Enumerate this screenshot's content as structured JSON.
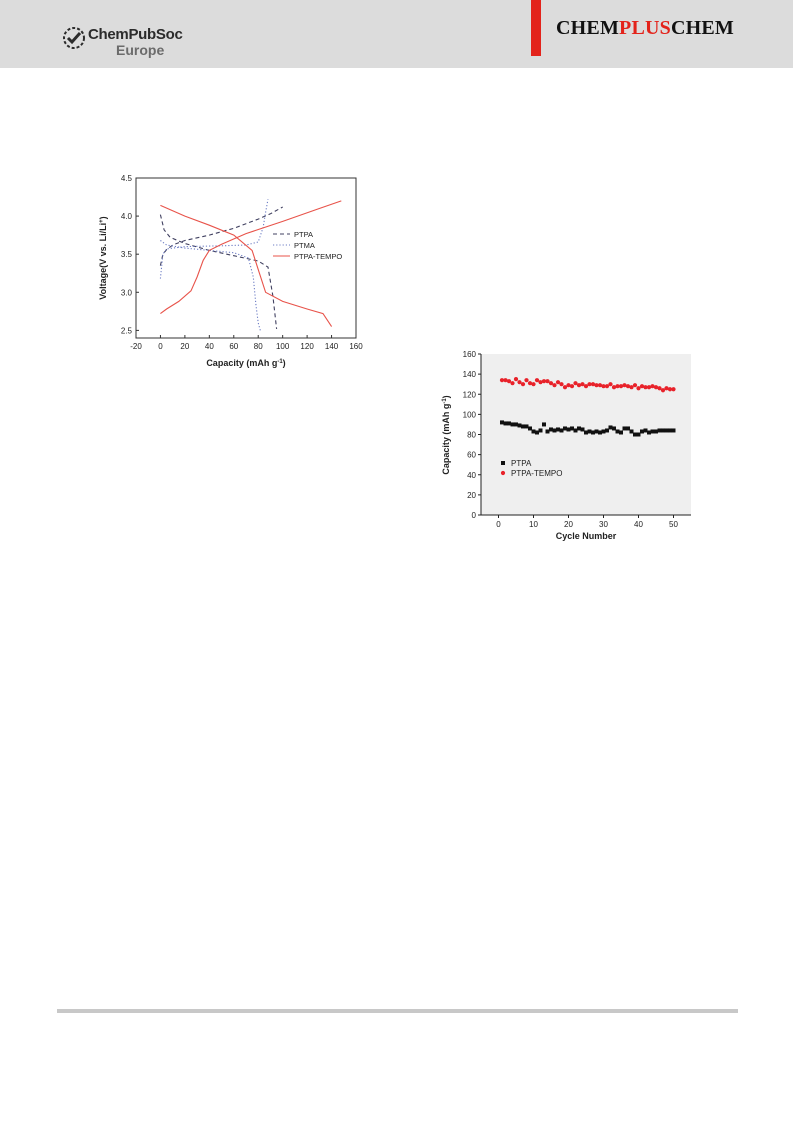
{
  "header": {
    "publisher_name": "ChemPubSoc",
    "publisher_sub": "Europe",
    "journal_left": "CHEM",
    "journal_mid": "PLUS",
    "journal_right": "CHEM",
    "accent_color": "#e3231b"
  },
  "chart_data": [
    {
      "type": "line",
      "xlabel": "Capacity (mAh g",
      "xlabel_sup": "-1",
      "xlabel_end": ")",
      "ylabel": "Voltage(V vs. Li/Li",
      "ylabel_sup": "+",
      "ylabel_end": ")",
      "xlim": [
        -20,
        160
      ],
      "ylim": [
        2.4,
        4.5
      ],
      "xticks": [
        -20,
        0,
        20,
        40,
        60,
        80,
        100,
        120,
        140,
        160
      ],
      "yticks": [
        2.5,
        3.0,
        3.5,
        4.0,
        4.5
      ],
      "legend_position": "middle-right",
      "series": [
        {
          "name": "PTPA",
          "color": "#404060",
          "style": "dashed",
          "charge": [
            [
              0,
              3.35
            ],
            [
              2,
              3.5
            ],
            [
              5,
              3.56
            ],
            [
              10,
              3.62
            ],
            [
              20,
              3.68
            ],
            [
              40,
              3.75
            ],
            [
              60,
              3.84
            ],
            [
              80,
              3.96
            ],
            [
              90,
              4.03
            ],
            [
              100,
              4.12
            ]
          ],
          "discharge": [
            [
              0,
              4.02
            ],
            [
              3,
              3.82
            ],
            [
              8,
              3.72
            ],
            [
              20,
              3.64
            ],
            [
              40,
              3.55
            ],
            [
              60,
              3.48
            ],
            [
              80,
              3.41
            ],
            [
              88,
              3.33
            ],
            [
              92,
              2.95
            ],
            [
              95,
              2.52
            ]
          ]
        },
        {
          "name": "PTMA",
          "color": "#6c7cc4",
          "style": "dotted",
          "charge": [
            [
              0,
              3.18
            ],
            [
              2,
              3.5
            ],
            [
              5,
              3.57
            ],
            [
              20,
              3.6
            ],
            [
              50,
              3.61
            ],
            [
              70,
              3.62
            ],
            [
              80,
              3.66
            ],
            [
              84,
              3.85
            ],
            [
              86,
              4.05
            ],
            [
              88,
              4.22
            ]
          ],
          "discharge": [
            [
              0,
              3.68
            ],
            [
              5,
              3.62
            ],
            [
              20,
              3.58
            ],
            [
              40,
              3.55
            ],
            [
              60,
              3.52
            ],
            [
              72,
              3.45
            ],
            [
              76,
              3.2
            ],
            [
              78,
              2.85
            ],
            [
              80,
              2.6
            ],
            [
              82,
              2.48
            ]
          ]
        },
        {
          "name": "PTPA-TEMPO",
          "color": "#e8534a",
          "style": "solid",
          "charge": [
            [
              0,
              2.72
            ],
            [
              5,
              2.78
            ],
            [
              15,
              2.88
            ],
            [
              25,
              3.02
            ],
            [
              30,
              3.2
            ],
            [
              35,
              3.42
            ],
            [
              40,
              3.55
            ],
            [
              50,
              3.63
            ],
            [
              70,
              3.77
            ],
            [
              100,
              3.93
            ],
            [
              130,
              4.1
            ],
            [
              148,
              4.2
            ]
          ],
          "discharge": [
            [
              0,
              4.14
            ],
            [
              20,
              4.0
            ],
            [
              40,
              3.88
            ],
            [
              60,
              3.75
            ],
            [
              75,
              3.55
            ],
            [
              80,
              3.3
            ],
            [
              86,
              3.0
            ],
            [
              100,
              2.88
            ],
            [
              120,
              2.78
            ],
            [
              133,
              2.72
            ],
            [
              140,
              2.55
            ]
          ]
        }
      ]
    },
    {
      "type": "scatter",
      "xlabel": "Cycle Number",
      "ylabel": "Capacity (mAh g",
      "ylabel_sup": "-1",
      "ylabel_end": ")",
      "xlim": [
        -5,
        55
      ],
      "ylim": [
        0,
        160
      ],
      "xticks": [
        0,
        10,
        20,
        30,
        40,
        50
      ],
      "yticks": [
        0,
        20,
        40,
        60,
        80,
        100,
        120,
        140,
        160
      ],
      "legend_position": "middle-left",
      "series": [
        {
          "name": "PTPA",
          "color": "#111111",
          "marker": "square",
          "x": [
            1,
            2,
            3,
            4,
            5,
            6,
            7,
            8,
            9,
            10,
            11,
            12,
            13,
            14,
            15,
            16,
            17,
            18,
            19,
            20,
            21,
            22,
            23,
            24,
            25,
            26,
            27,
            28,
            29,
            30,
            31,
            32,
            33,
            34,
            35,
            36,
            37,
            38,
            39,
            40,
            41,
            42,
            43,
            44,
            45,
            46,
            47,
            48,
            49,
            50
          ],
          "y": [
            92,
            91,
            91,
            90,
            90,
            89,
            88,
            88,
            86,
            83,
            82,
            84,
            90,
            83,
            85,
            84,
            85,
            84,
            86,
            85,
            86,
            84,
            86,
            85,
            82,
            83,
            82,
            83,
            82,
            83,
            84,
            87,
            86,
            83,
            82,
            86,
            86,
            83,
            80,
            80,
            83,
            84,
            82,
            83,
            83,
            84,
            84,
            84,
            84,
            84
          ]
        },
        {
          "name": "PTPA-TEMPO",
          "color": "#e8222a",
          "marker": "circle",
          "x": [
            1,
            2,
            3,
            4,
            5,
            6,
            7,
            8,
            9,
            10,
            11,
            12,
            13,
            14,
            15,
            16,
            17,
            18,
            19,
            20,
            21,
            22,
            23,
            24,
            25,
            26,
            27,
            28,
            29,
            30,
            31,
            32,
            33,
            34,
            35,
            36,
            37,
            38,
            39,
            40,
            41,
            42,
            43,
            44,
            45,
            46,
            47,
            48,
            49,
            50
          ],
          "y": [
            134,
            134,
            133,
            131,
            135,
            132,
            130,
            134,
            131,
            130,
            134,
            132,
            133,
            133,
            131,
            129,
            132,
            130,
            127,
            129,
            128,
            131,
            129,
            130,
            128,
            130,
            130,
            129,
            129,
            128,
            128,
            130,
            127,
            128,
            128,
            129,
            128,
            127,
            129,
            126,
            128,
            127,
            127,
            128,
            127,
            126,
            124,
            126,
            125,
            125
          ]
        }
      ]
    }
  ]
}
